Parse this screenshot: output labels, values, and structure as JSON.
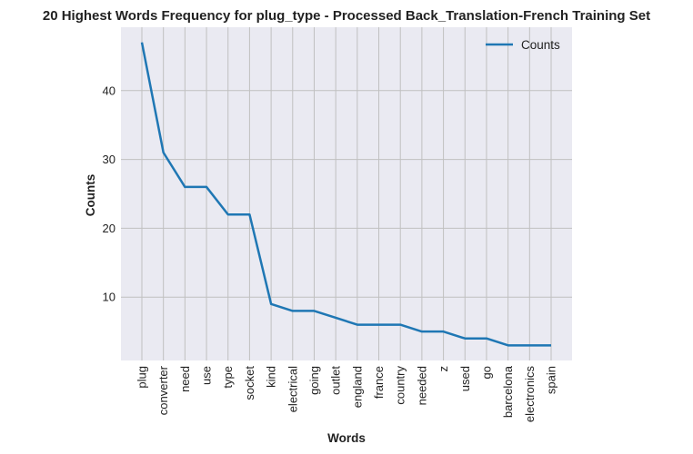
{
  "chart_data": {
    "type": "line",
    "title": "20 Highest Words Frequency for plug_type - Processed Back_Translation-French Training Set",
    "xlabel": "Words",
    "ylabel": "Counts",
    "categories": [
      "plug",
      "converter",
      "need",
      "use",
      "type",
      "socket",
      "kind",
      "electrical",
      "going",
      "outlet",
      "england",
      "france",
      "country",
      "needed",
      "z",
      "used",
      "go",
      "barcelona",
      "electronics",
      "spain"
    ],
    "series": [
      {
        "name": "Counts",
        "values": [
          47,
          31,
          26,
          26,
          22,
          22,
          9,
          8,
          8,
          7,
          6,
          6,
          6,
          5,
          5,
          4,
          4,
          3,
          3,
          3
        ]
      }
    ],
    "y_ticks": [
      10,
      20,
      30,
      40
    ],
    "ylim": [
      0.8,
      49.2
    ],
    "grid": true,
    "legend_position": "top-right",
    "colors": {
      "line": "#1f77b4",
      "plot_background": "#eaeaf2",
      "grid": "#c0c0c0"
    }
  }
}
